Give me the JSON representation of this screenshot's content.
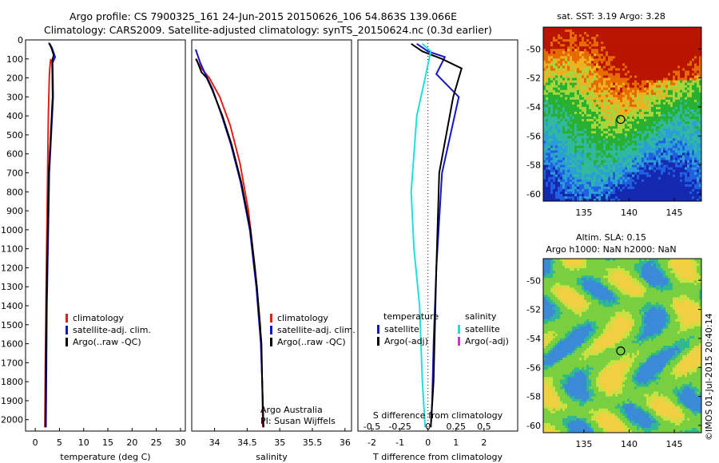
{
  "title_line1": "Argo profile: CS 7900325_161 24-Jun-2015 20150626_106 54.863S 139.066E",
  "title_line2": "Climatology: CARS2009. Satellite-adjusted climatology: synTS_20150624.nc (0.3d earlier)",
  "timestamp_label": "©IMOS 01-Jul-2015 20:40:14",
  "colors": {
    "climatology": "#e0201b",
    "satellite": "#1414c8",
    "argo": "#000000",
    "sat_salinity": "#22dddd",
    "argo_adj": "#cc33cc"
  },
  "chart_data": [
    {
      "type": "line",
      "xlabel": "temperature (deg C)",
      "ylabel": "",
      "xlim": [
        -2,
        31
      ],
      "ylim": [
        2060,
        0
      ],
      "xticks": [
        "0",
        "5",
        "10",
        "15",
        "20",
        "25",
        "30"
      ],
      "yticks": [
        "0",
        "100",
        "200",
        "300",
        "400",
        "500",
        "600",
        "700",
        "800",
        "900",
        "1000",
        "1100",
        "1200",
        "1300",
        "1400",
        "1500",
        "1600",
        "1700",
        "1800",
        "1900",
        "2000"
      ],
      "legend": [
        "climatology",
        "satellite-adj. clim.",
        "Argo(..raw -QC)"
      ],
      "legend_position": "lower-right",
      "series": [
        {
          "name": "climatology",
          "x": [
            3.2,
            3.0,
            2.9,
            2.7,
            2.5,
            2.3,
            2.1,
            2.0
          ],
          "y": [
            100,
            150,
            200,
            400,
            800,
            1200,
            1700,
            2040
          ]
        },
        {
          "name": "satellite-adj. clim.",
          "x": [
            3.0,
            3.5,
            4.1,
            3.6,
            3.7,
            2.9,
            2.4,
            2.2
          ],
          "y": [
            20,
            45,
            90,
            120,
            300,
            700,
            1400,
            2040
          ]
        },
        {
          "name": "Argo(..raw -QC)",
          "x": [
            2.8,
            3.3,
            3.8,
            3.5,
            3.6,
            2.8,
            2.3,
            2.1
          ],
          "y": [
            15,
            40,
            80,
            110,
            300,
            700,
            1400,
            2040
          ]
        }
      ]
    },
    {
      "type": "line",
      "xlabel": "salinity",
      "ylabel": "",
      "xlim": [
        33.65,
        36.1
      ],
      "ylim": [
        2060,
        0
      ],
      "xticks": [
        "34",
        "34.5",
        "35",
        "35.5",
        "36"
      ],
      "legend": [
        "climatology",
        "satellite-adj. clim.",
        "Argo(..raw -QC)"
      ],
      "legend_position": "lower-right",
      "annotation": [
        "Argo Australia",
        "PI: Susan Wijffels"
      ],
      "series": [
        {
          "name": "climatology",
          "x": [
            33.71,
            33.8,
            33.92,
            34.08,
            34.24,
            34.39,
            34.52,
            34.62,
            34.7,
            34.73,
            34.74
          ],
          "y": [
            100,
            150,
            200,
            300,
            450,
            650,
            900,
            1200,
            1500,
            1800,
            2040
          ]
        },
        {
          "name": "satellite-adj. clim.",
          "x": [
            33.71,
            33.78,
            33.86,
            33.97,
            34.11,
            34.25,
            34.4,
            34.54,
            34.64,
            34.71,
            34.73,
            34.75
          ],
          "y": [
            50,
            120,
            180,
            260,
            400,
            550,
            750,
            1000,
            1300,
            1600,
            1800,
            2040
          ]
        },
        {
          "name": "Argo(..raw -QC)",
          "x": [
            33.72,
            33.8,
            33.88,
            33.96,
            34.12,
            34.26,
            34.41,
            34.55,
            34.65,
            34.72,
            34.73,
            34.75
          ],
          "y": [
            100,
            170,
            200,
            260,
            400,
            550,
            750,
            1000,
            1300,
            1600,
            1800,
            2040
          ]
        }
      ]
    },
    {
      "type": "line",
      "xlabel": "T difference from climatology",
      "xlabel_top": "S difference from climatology",
      "xlim": [
        -2.5,
        3.2
      ],
      "ylim": [
        2060,
        0
      ],
      "xticks": [
        "-2",
        "-1",
        "0",
        "1",
        "2"
      ],
      "xticks_s": [
        "-0.5",
        "-0.25",
        "0",
        "0.25",
        "0.5"
      ],
      "legend_titles": [
        "temperature",
        "salinity"
      ],
      "legend": [
        "satellite",
        "Argo(-adj)",
        "satellite",
        "Argo(-adj)"
      ],
      "series": [
        {
          "name": "satellite",
          "x": [
            -0.4,
            0.0,
            0.6,
            0.3,
            1.1,
            0.5,
            0.3,
            0.2,
            0.15,
            0.1
          ],
          "y": [
            20,
            60,
            90,
            180,
            300,
            700,
            1200,
            1600,
            1900,
            2040
          ]
        },
        {
          "name": "Argo(-adj)",
          "x": [
            -0.6,
            -0.2,
            0.5,
            1.2,
            0.9,
            0.4,
            0.3,
            0.2,
            0.1
          ],
          "y": [
            20,
            60,
            100,
            150,
            300,
            700,
            1200,
            1800,
            2040
          ]
        },
        {
          "name": "satellite",
          "x": [
            -0.2,
            0.1,
            -0.1,
            -0.4,
            -0.6,
            -0.5,
            -0.3,
            -0.2,
            -0.1
          ],
          "y": [
            20,
            60,
            200,
            400,
            800,
            1100,
            1400,
            1800,
            2040
          ]
        }
      ]
    },
    {
      "type": "heatmap",
      "title": "sat. SST: 3.19 Argo: 3.28",
      "xlim": [
        130.5,
        148
      ],
      "ylim": [
        -60.5,
        -48.5
      ],
      "xticks": [
        "135",
        "140",
        "145"
      ],
      "yticks": [
        "-50",
        "-52",
        "-54",
        "-56",
        "-58",
        "-60"
      ],
      "marker": {
        "lon": 139.066,
        "lat": -54.863
      }
    },
    {
      "type": "heatmap",
      "title_line1": "Altim. SLA: 0.15",
      "title_line2": "Argo h1000: NaN h2000: NaN",
      "xlim": [
        130.5,
        148
      ],
      "ylim": [
        -60.5,
        -48.5
      ],
      "xticks": [
        "135",
        "140",
        "145"
      ],
      "yticks": [
        "-50",
        "-52",
        "-54",
        "-56",
        "-58",
        "-60"
      ],
      "marker": {
        "lon": 139.066,
        "lat": -54.863
      }
    }
  ]
}
